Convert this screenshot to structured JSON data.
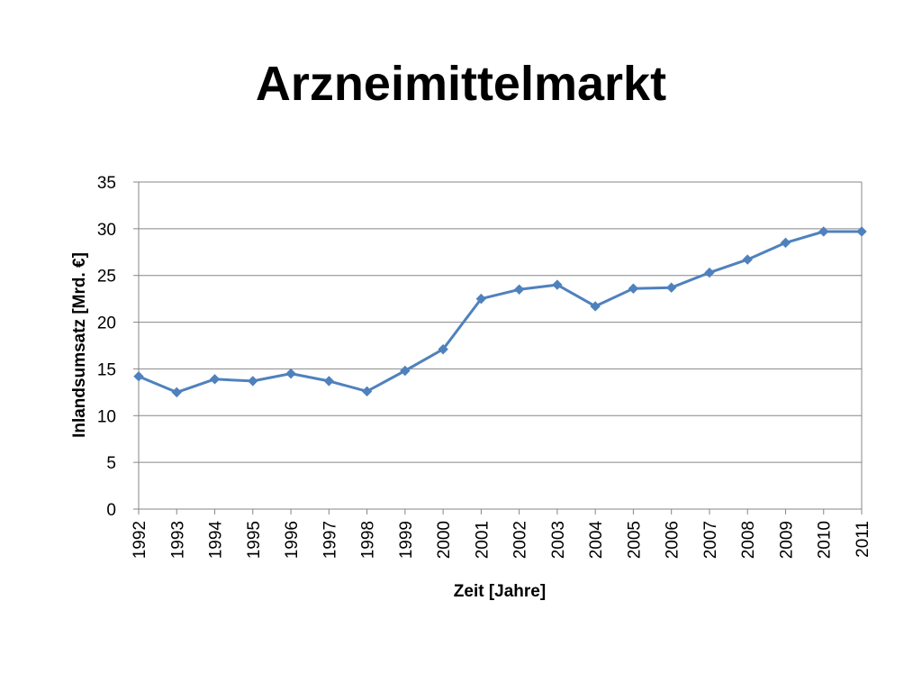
{
  "slide": {
    "title": "Arzneimittelmarkt"
  },
  "chart_data": {
    "type": "line",
    "title": "",
    "xlabel": "Zeit [Jahre]",
    "ylabel": "Inlandsumsatz [Mrd. €]",
    "ylim": [
      0,
      35
    ],
    "ytick_step": 5,
    "grid": true,
    "legend": "none",
    "marker": "diamond",
    "colors": {
      "line": "#4F81BD",
      "grid": "#878787",
      "axis": "#878787",
      "text": "#000000"
    },
    "categories": [
      "1992",
      "1993",
      "1994",
      "1995",
      "1996",
      "1997",
      "1998",
      "1999",
      "2000",
      "2001",
      "2002",
      "2003",
      "2004",
      "2005",
      "2006",
      "2007",
      "2008",
      "2009",
      "2010",
      "2011"
    ],
    "series": [
      {
        "values": [
          14.2,
          12.5,
          13.9,
          13.7,
          14.5,
          13.7,
          12.6,
          14.8,
          17.1,
          22.5,
          23.5,
          24.0,
          21.7,
          23.6,
          23.7,
          25.3,
          26.7,
          28.5,
          29.7,
          29.7
        ]
      }
    ]
  }
}
